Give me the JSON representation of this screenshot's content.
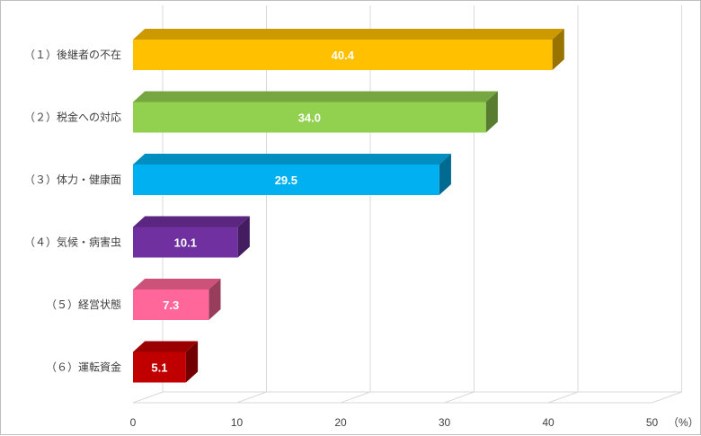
{
  "chart_data": {
    "type": "bar",
    "orientation": "horizontal",
    "three_d": true,
    "categories": [
      "（１）後継者の不在",
      "（２）税金への対応",
      "（３）体力・健康面",
      "（４）気候・病害虫",
      "（５）経営状態",
      "（６）運転資金"
    ],
    "values": [
      40.4,
      34.0,
      29.5,
      10.1,
      7.3,
      5.1
    ],
    "value_labels": [
      "40.4",
      "34.0",
      "29.5",
      "10.1",
      "7.3",
      "5.1"
    ],
    "colors": [
      "#ffc000",
      "#92d050",
      "#00b0f0",
      "#7030a0",
      "#ff6699",
      "#c00000"
    ],
    "xlim": [
      0,
      50
    ],
    "x_ticks": [
      "0",
      "10",
      "20",
      "30",
      "40",
      "50"
    ],
    "unit": "（%）",
    "grid": true,
    "legend": "none"
  }
}
